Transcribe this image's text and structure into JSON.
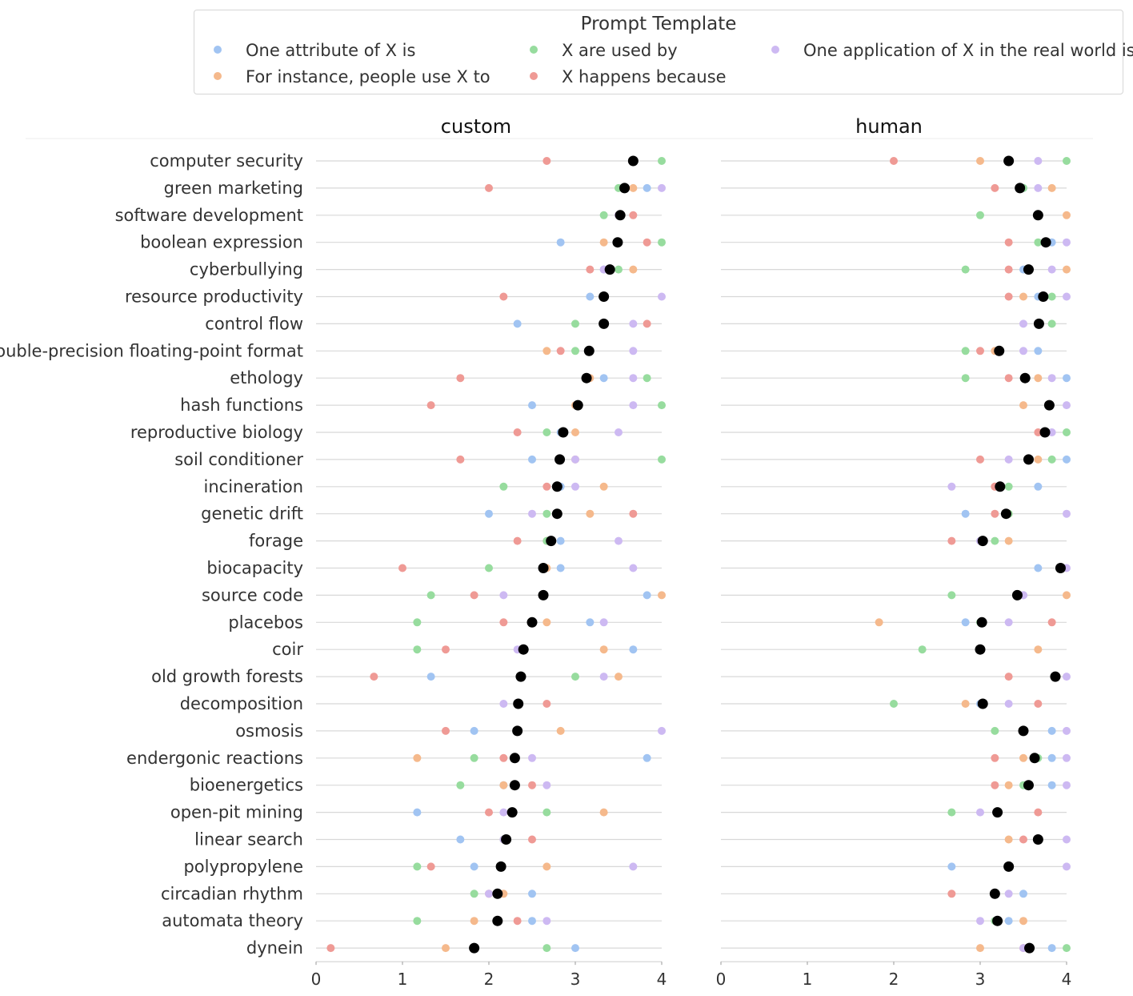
{
  "legend": {
    "title": "Prompt Template",
    "items": [
      {
        "label": "One attribute of X is",
        "color": "#a1c4f2"
      },
      {
        "label": "For instance, people use X to",
        "color": "#f5b98c"
      },
      {
        "label": "X are used by",
        "color": "#97dc9e"
      },
      {
        "label": "X happens because",
        "color": "#ef9a95"
      },
      {
        "label": "One application of X in the real world is",
        "color": "#cdb9f2"
      }
    ]
  },
  "chart_data": {
    "type": "scatter",
    "facets": [
      "custom",
      "human"
    ],
    "xlim": [
      0,
      4
    ],
    "xticks": [
      "0",
      "1",
      "2",
      "3",
      "4"
    ],
    "mean_color": "#000000",
    "topics": [
      "computer security",
      "green marketing",
      "software development",
      "boolean expression",
      "cyberbullying",
      "resource productivity",
      "control flow",
      "double-precision floating-point format",
      "ethology",
      "hash functions",
      "reproductive biology",
      "soil conditioner",
      "incineration",
      "genetic drift",
      "forage",
      "biocapacity",
      "source code",
      "placebos",
      "coir",
      "old growth forests",
      "decomposition",
      "osmosis",
      "endergonic reactions",
      "bioenergetics",
      "open-pit mining",
      "linear search",
      "polypropylene",
      "circadian rhythm",
      "automata theory",
      "dynein"
    ],
    "custom": [
      {
        "values": [
          3.67,
          3.67,
          4.0,
          2.67,
          3.67
        ],
        "mean": 3.67
      },
      {
        "values": [
          3.83,
          3.67,
          3.5,
          2.0,
          4.0
        ],
        "mean": 3.57
      },
      {
        "values": [
          3.5,
          3.5,
          3.33,
          3.67,
          3.5
        ],
        "mean": 3.52
      },
      {
        "values": [
          2.83,
          3.33,
          4.0,
          3.83,
          3.5
        ],
        "mean": 3.49
      },
      {
        "values": [
          3.33,
          3.67,
          3.5,
          3.17,
          3.33
        ],
        "mean": 3.4
      },
      {
        "values": [
          3.17,
          3.33,
          3.33,
          2.17,
          4.0
        ],
        "mean": 3.33
      },
      {
        "values": [
          2.33,
          3.33,
          3.0,
          3.83,
          3.67
        ],
        "mean": 3.33
      },
      {
        "values": [
          3.17,
          2.67,
          3.0,
          2.83,
          3.67
        ],
        "mean": 3.16
      },
      {
        "values": [
          3.33,
          3.17,
          3.83,
          1.67,
          3.67
        ],
        "mean": 3.13
      },
      {
        "values": [
          2.5,
          3.0,
          4.0,
          1.33,
          3.67
        ],
        "mean": 3.03
      },
      {
        "values": [
          2.83,
          3.0,
          2.67,
          2.33,
          3.5
        ],
        "mean": 2.86
      },
      {
        "values": [
          2.5,
          3.0,
          4.0,
          1.67,
          3.0
        ],
        "mean": 2.82
      },
      {
        "values": [
          2.83,
          3.33,
          2.17,
          2.67,
          3.0
        ],
        "mean": 2.79
      },
      {
        "values": [
          2.0,
          3.17,
          2.67,
          3.67,
          2.5
        ],
        "mean": 2.79
      },
      {
        "values": [
          2.83,
          2.67,
          2.67,
          2.33,
          3.5
        ],
        "mean": 2.72
      },
      {
        "values": [
          2.83,
          2.67,
          2.0,
          1.0,
          3.67
        ],
        "mean": 2.63
      },
      {
        "values": [
          3.83,
          4.0,
          1.33,
          1.83,
          2.17
        ],
        "mean": 2.63
      },
      {
        "values": [
          3.17,
          2.67,
          1.17,
          2.17,
          3.33
        ],
        "mean": 2.5
      },
      {
        "values": [
          3.67,
          3.33,
          1.17,
          1.5,
          2.33
        ],
        "mean": 2.4
      },
      {
        "values": [
          1.33,
          3.5,
          3.0,
          0.67,
          3.33
        ],
        "mean": 2.37
      },
      {
        "values": [
          2.33,
          2.33,
          2.33,
          2.67,
          2.17
        ],
        "mean": 2.34
      },
      {
        "values": [
          1.83,
          2.83,
          2.33,
          1.5,
          4.0
        ],
        "mean": 2.33
      },
      {
        "values": [
          3.83,
          1.17,
          1.83,
          2.17,
          2.5
        ],
        "mean": 2.3
      },
      {
        "values": [
          2.17,
          2.17,
          1.67,
          2.5,
          2.67
        ],
        "mean": 2.3
      },
      {
        "values": [
          1.17,
          3.33,
          2.67,
          2.0,
          2.17
        ],
        "mean": 2.27
      },
      {
        "values": [
          1.67,
          2.17,
          2.17,
          2.5,
          2.17
        ],
        "mean": 2.2
      },
      {
        "values": [
          1.83,
          2.67,
          1.17,
          1.33,
          3.67
        ],
        "mean": 2.14
      },
      {
        "values": [
          2.5,
          2.17,
          1.83,
          2.0,
          2.0
        ],
        "mean": 2.1
      },
      {
        "values": [
          2.5,
          1.83,
          1.17,
          2.33,
          2.67
        ],
        "mean": 2.1
      },
      {
        "values": [
          3.0,
          1.5,
          2.67,
          0.17,
          1.83
        ],
        "mean": 1.83
      }
    ],
    "human": [
      {
        "values": [
          3.33,
          3.0,
          4.0,
          2.0,
          3.67
        ],
        "mean": 3.33
      },
      {
        "values": [
          3.5,
          3.83,
          3.5,
          3.17,
          3.67
        ],
        "mean": 3.46
      },
      {
        "values": [
          3.67,
          4.0,
          3.0,
          3.67,
          3.67
        ],
        "mean": 3.67
      },
      {
        "values": [
          3.83,
          3.75,
          3.67,
          3.33,
          4.0
        ],
        "mean": 3.76
      },
      {
        "values": [
          3.5,
          4.0,
          2.83,
          3.33,
          3.83
        ],
        "mean": 3.56
      },
      {
        "values": [
          3.67,
          3.5,
          3.83,
          3.33,
          4.0
        ],
        "mean": 3.73
      },
      {
        "values": [
          3.67,
          3.67,
          3.83,
          3.67,
          3.5
        ],
        "mean": 3.68
      },
      {
        "values": [
          3.67,
          3.17,
          2.83,
          3.0,
          3.5
        ],
        "mean": 3.22
      },
      {
        "values": [
          4.0,
          3.67,
          2.83,
          3.33,
          3.83
        ],
        "mean": 3.52
      },
      {
        "values": [
          3.8,
          3.5,
          3.8,
          3.8,
          4.0
        ],
        "mean": 3.8
      },
      {
        "values": [
          3.75,
          3.75,
          4.0,
          3.67,
          3.83
        ],
        "mean": 3.75
      },
      {
        "values": [
          4.0,
          3.67,
          3.83,
          3.0,
          3.33
        ],
        "mean": 3.56
      },
      {
        "values": [
          3.67,
          3.17,
          3.33,
          3.17,
          2.67
        ],
        "mean": 3.23
      },
      {
        "values": [
          2.83,
          3.33,
          3.33,
          3.17,
          4.0
        ],
        "mean": 3.3
      },
      {
        "values": [
          3.0,
          3.33,
          3.17,
          2.67,
          3.0
        ],
        "mean": 3.03
      },
      {
        "values": [
          3.67,
          3.93,
          3.93,
          3.93,
          4.0
        ],
        "mean": 3.93
      },
      {
        "values": [
          3.5,
          4.0,
          2.67,
          3.43,
          3.5
        ],
        "mean": 3.43
      },
      {
        "values": [
          2.83,
          1.83,
          3.0,
          3.83,
          3.33
        ],
        "mean": 3.02
      },
      {
        "values": [
          3.0,
          3.67,
          2.33,
          3.0,
          3.0
        ],
        "mean": 3.0
      },
      {
        "values": [
          3.87,
          3.87,
          3.87,
          3.33,
          4.0
        ],
        "mean": 3.87
      },
      {
        "values": [
          3.0,
          2.83,
          2.0,
          3.67,
          3.33
        ],
        "mean": 3.03
      },
      {
        "values": [
          3.83,
          3.5,
          3.17,
          3.5,
          4.0
        ],
        "mean": 3.5
      },
      {
        "values": [
          3.83,
          3.5,
          3.67,
          3.17,
          4.0
        ],
        "mean": 3.63
      },
      {
        "values": [
          3.83,
          3.33,
          3.5,
          3.17,
          4.0
        ],
        "mean": 3.56
      },
      {
        "values": [
          3.2,
          3.2,
          2.67,
          3.67,
          3.0
        ],
        "mean": 3.2
      },
      {
        "values": [
          3.67,
          3.33,
          3.67,
          3.5,
          4.0
        ],
        "mean": 3.67
      },
      {
        "values": [
          2.67,
          3.33,
          3.33,
          3.33,
          4.0
        ],
        "mean": 3.33
      },
      {
        "values": [
          3.5,
          3.17,
          3.17,
          2.67,
          3.33
        ],
        "mean": 3.17
      },
      {
        "values": [
          3.33,
          3.5,
          3.17,
          3.2,
          3.0
        ],
        "mean": 3.2
      },
      {
        "values": [
          3.83,
          3.0,
          4.0,
          3.5,
          3.5
        ],
        "mean": 3.57
      }
    ]
  }
}
